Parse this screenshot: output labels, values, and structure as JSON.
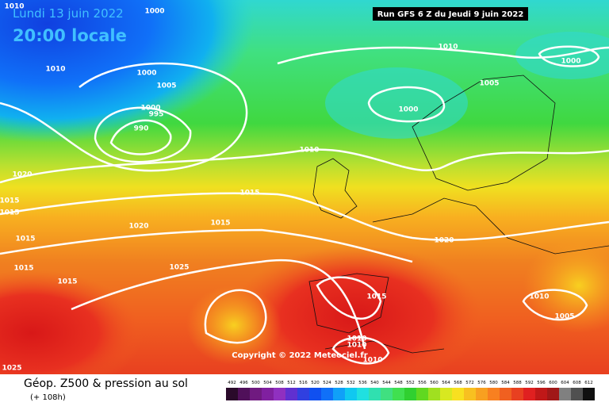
{
  "header": {
    "date": "Lundi 13 juin 2022",
    "time": "20:00 locale",
    "run": "Run GFS 6 Z du Jeudi 9 juin 2022"
  },
  "copyright": "Copyright © 2022 Meteociel.fr",
  "isobar_labels": [
    "1010",
    "1000",
    "1010",
    "1000",
    "1005",
    "1000",
    "995",
    "990",
    "1010",
    "1000",
    "1005",
    "1000",
    "1010",
    "1020",
    "1015",
    "1015",
    "1015",
    "1020",
    "1015",
    "1015",
    "1015",
    "1015",
    "1025",
    "1020",
    "1015",
    "1010",
    "1005",
    "1010",
    "1010",
    "1010",
    "1025"
  ],
  "footer": {
    "title": "Géop. Z500 & pression au sol",
    "lead": "(+ 108h)"
  },
  "legend": {
    "ticks": [
      492,
      496,
      500,
      504,
      508,
      512,
      516,
      520,
      524,
      528,
      532,
      536,
      540,
      544,
      548,
      552,
      556,
      560,
      564,
      568,
      572,
      576,
      580,
      584,
      588,
      592,
      596,
      600,
      604,
      608,
      612
    ],
    "colors": [
      "#2a0a2a",
      "#50105a",
      "#701a80",
      "#8020a0",
      "#9030c0",
      "#6030d0",
      "#3040e0",
      "#1050f0",
      "#1070f8",
      "#10a0f8",
      "#10c8f0",
      "#20e0e0",
      "#30e0b0",
      "#40e080",
      "#40e050",
      "#30d030",
      "#60d820",
      "#a0e020",
      "#d8e820",
      "#f8e020",
      "#f8c020",
      "#f8a020",
      "#f88020",
      "#f06020",
      "#e84020",
      "#e02020",
      "#c01818",
      "#a01818",
      "#808080",
      "#505050",
      "#101010"
    ]
  }
}
